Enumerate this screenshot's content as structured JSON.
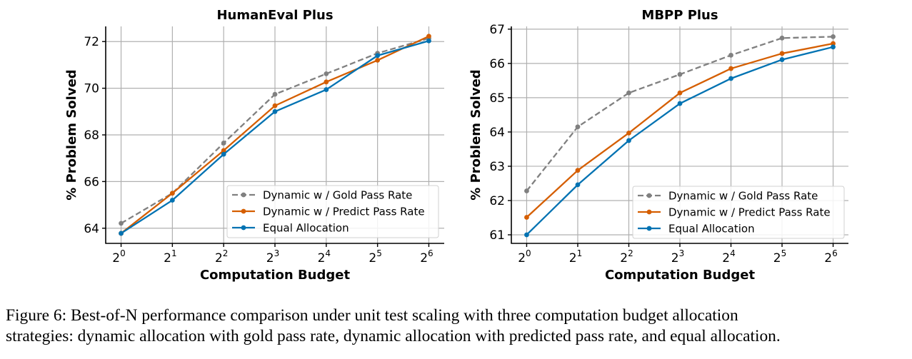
{
  "colors": {
    "gold": "#808080",
    "predict": "#d55e00",
    "equal": "#0072b2",
    "grid": "#b0b0b0"
  },
  "chart_data": [
    {
      "type": "line",
      "title": "HumanEval Plus",
      "xlabel": "Computation Budget",
      "ylabel": "% Problem Solved",
      "x_tick_labels": [
        {
          "base": "2",
          "exp": "0"
        },
        {
          "base": "2",
          "exp": "1"
        },
        {
          "base": "2",
          "exp": "2"
        },
        {
          "base": "2",
          "exp": "3"
        },
        {
          "base": "2",
          "exp": "4"
        },
        {
          "base": "2",
          "exp": "5"
        },
        {
          "base": "2",
          "exp": "6"
        }
      ],
      "x": [
        1,
        2,
        4,
        8,
        16,
        32,
        64
      ],
      "xscale": "log2",
      "y_ticks": [
        64,
        66,
        68,
        70,
        72
      ],
      "y_tick_labels": [
        "64",
        "66",
        "68",
        "70",
        "72"
      ],
      "ylim": [
        63.35,
        72.65
      ],
      "grid": true,
      "legend_position": "lower-right",
      "series": [
        {
          "name": "Dynamic w / Gold Pass Rate",
          "style": "dashed",
          "color_key": "gold",
          "values": [
            64.21,
            65.5,
            67.65,
            69.74,
            70.62,
            71.5,
            72.14
          ]
        },
        {
          "name": "Dynamic w / Predict Pass Rate",
          "style": "solid",
          "color_key": "predict",
          "values": [
            63.78,
            65.5,
            67.33,
            69.25,
            70.27,
            71.2,
            72.23
          ]
        },
        {
          "name": "Equal Allocation",
          "style": "solid",
          "color_key": "equal",
          "values": [
            63.78,
            65.2,
            67.17,
            69.0,
            69.94,
            71.4,
            72.03
          ]
        }
      ]
    },
    {
      "type": "line",
      "title": "MBPP Plus",
      "xlabel": "Computation Budget",
      "ylabel": "% Problem Solved",
      "x_tick_labels": [
        {
          "base": "2",
          "exp": "0"
        },
        {
          "base": "2",
          "exp": "1"
        },
        {
          "base": "2",
          "exp": "2"
        },
        {
          "base": "2",
          "exp": "3"
        },
        {
          "base": "2",
          "exp": "4"
        },
        {
          "base": "2",
          "exp": "5"
        },
        {
          "base": "2",
          "exp": "6"
        }
      ],
      "x": [
        1,
        2,
        4,
        8,
        16,
        32,
        64
      ],
      "xscale": "log2",
      "y_ticks": [
        61,
        62,
        63,
        64,
        65,
        66,
        67
      ],
      "y_tick_labels": [
        "61",
        "62",
        "63",
        "64",
        "65",
        "66",
        "67"
      ],
      "ylim": [
        60.75,
        67.08
      ],
      "grid": true,
      "legend_position": "lower-right",
      "series": [
        {
          "name": "Dynamic w / Gold Pass Rate",
          "style": "dashed",
          "color_key": "gold",
          "values": [
            62.28,
            64.15,
            65.14,
            65.68,
            66.24,
            66.74,
            66.78
          ]
        },
        {
          "name": "Dynamic w / Predict Pass Rate",
          "style": "solid",
          "color_key": "predict",
          "values": [
            61.51,
            62.88,
            63.97,
            65.14,
            65.85,
            66.29,
            66.58
          ]
        },
        {
          "name": "Equal Allocation",
          "style": "solid",
          "color_key": "equal",
          "values": [
            61.0,
            62.46,
            63.75,
            64.83,
            65.56,
            66.11,
            66.48
          ]
        }
      ]
    }
  ],
  "caption": {
    "line1": "Figure 6:  Best-of-N performance comparison under unit test scaling with three computation budget allocation",
    "line2": "strategies: dynamic allocation with gold pass rate, dynamic allocation with predicted pass rate, and equal allocation."
  }
}
